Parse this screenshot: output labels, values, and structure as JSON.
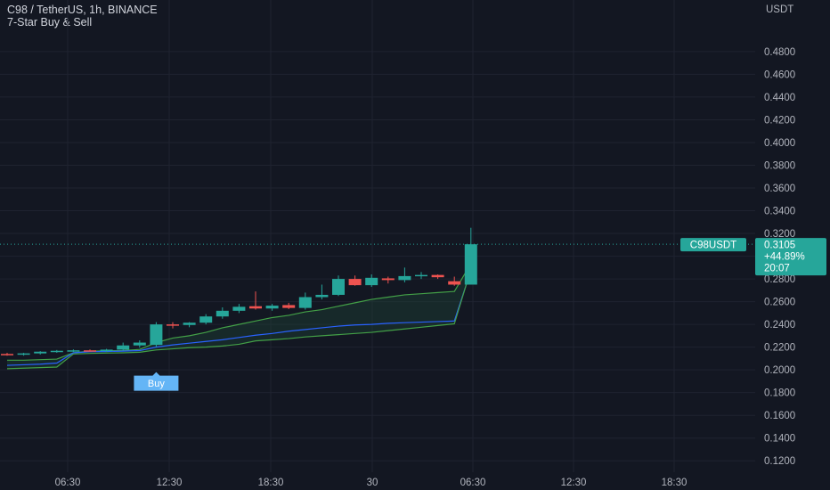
{
  "legend": {
    "symbol_line": "C98 / TetherUS, 1h, BINANCE",
    "indicator": "7-Star Buy & Sell"
  },
  "colors": {
    "background": "#131722",
    "grid": "#1f2330",
    "up": "#26a69a",
    "down": "#ef5350",
    "blue_line": "#2962ff",
    "green_line": "#43a047",
    "fill": "#1f4a3a",
    "buy_label": "#64b5f6"
  },
  "chart_data": {
    "type": "candlestick",
    "y_unit": "USDT",
    "ylim": [
      0.11,
      0.505
    ],
    "y_ticks": [
      "0.4800",
      "0.4600",
      "0.4400",
      "0.4200",
      "0.4000",
      "0.3800",
      "0.3600",
      "0.3400",
      "0.3200",
      "0.3000",
      "0.2800",
      "0.2600",
      "0.2400",
      "0.2200",
      "0.2000",
      "0.1800",
      "0.1600",
      "0.1400",
      "0.1200"
    ],
    "x_ticks": [
      "06:30",
      "12:30",
      "18:30",
      "30",
      "06:30",
      "12:30",
      "18:30"
    ],
    "grid": true,
    "last_price": {
      "symbol": "C98USDT",
      "price": "0.3105",
      "change": "+44.89%",
      "countdown": "20:07",
      "value": 0.3105
    },
    "buy_signal": {
      "label": "Buy",
      "candle_index": 9
    },
    "candles": [
      {
        "o": 0.214,
        "h": 0.215,
        "l": 0.2125,
        "c": 0.2135
      },
      {
        "o": 0.2135,
        "h": 0.215,
        "l": 0.2125,
        "c": 0.2145
      },
      {
        "o": 0.2145,
        "h": 0.2165,
        "l": 0.2135,
        "c": 0.216
      },
      {
        "o": 0.216,
        "h": 0.2175,
        "l": 0.215,
        "c": 0.2168
      },
      {
        "o": 0.2168,
        "h": 0.218,
        "l": 0.2158,
        "c": 0.2172
      },
      {
        "o": 0.2172,
        "h": 0.218,
        "l": 0.216,
        "c": 0.2165
      },
      {
        "o": 0.2165,
        "h": 0.2185,
        "l": 0.2158,
        "c": 0.2178
      },
      {
        "o": 0.2178,
        "h": 0.224,
        "l": 0.217,
        "c": 0.2215
      },
      {
        "o": 0.2215,
        "h": 0.226,
        "l": 0.2195,
        "c": 0.224
      },
      {
        "o": 0.222,
        "h": 0.242,
        "l": 0.22,
        "c": 0.24
      },
      {
        "o": 0.24,
        "h": 0.242,
        "l": 0.2365,
        "c": 0.2395
      },
      {
        "o": 0.2395,
        "h": 0.242,
        "l": 0.2375,
        "c": 0.2415
      },
      {
        "o": 0.2415,
        "h": 0.249,
        "l": 0.24,
        "c": 0.247
      },
      {
        "o": 0.247,
        "h": 0.255,
        "l": 0.245,
        "c": 0.252
      },
      {
        "o": 0.252,
        "h": 0.258,
        "l": 0.25,
        "c": 0.2555
      },
      {
        "o": 0.256,
        "h": 0.269,
        "l": 0.253,
        "c": 0.254
      },
      {
        "o": 0.254,
        "h": 0.258,
        "l": 0.252,
        "c": 0.2565
      },
      {
        "o": 0.257,
        "h": 0.259,
        "l": 0.2535,
        "c": 0.2545
      },
      {
        "o": 0.2545,
        "h": 0.268,
        "l": 0.253,
        "c": 0.264
      },
      {
        "o": 0.264,
        "h": 0.275,
        "l": 0.262,
        "c": 0.266
      },
      {
        "o": 0.266,
        "h": 0.283,
        "l": 0.265,
        "c": 0.28
      },
      {
        "o": 0.28,
        "h": 0.283,
        "l": 0.274,
        "c": 0.2745
      },
      {
        "o": 0.2745,
        "h": 0.284,
        "l": 0.273,
        "c": 0.281
      },
      {
        "o": 0.2805,
        "h": 0.282,
        "l": 0.276,
        "c": 0.279
      },
      {
        "o": 0.279,
        "h": 0.29,
        "l": 0.277,
        "c": 0.2825
      },
      {
        "o": 0.2825,
        "h": 0.286,
        "l": 0.28,
        "c": 0.2835
      },
      {
        "o": 0.2835,
        "h": 0.284,
        "l": 0.28,
        "c": 0.2815
      },
      {
        "o": 0.278,
        "h": 0.282,
        "l": 0.274,
        "c": 0.275
      },
      {
        "o": 0.275,
        "h": 0.325,
        "l": 0.275,
        "c": 0.3105
      }
    ],
    "series": [
      {
        "values": [
          0.2085,
          0.2085,
          0.209,
          0.2095,
          0.215,
          0.2165,
          0.2168,
          0.217,
          0.218,
          0.224,
          0.228,
          0.23,
          0.233,
          0.237,
          0.24,
          0.243,
          0.246,
          0.248,
          0.251,
          0.253,
          0.256,
          0.259,
          0.262,
          0.264,
          0.266,
          0.267,
          0.268,
          0.269,
          0.2935
        ]
      },
      {
        "values": [
          0.204,
          0.2045,
          0.205,
          0.206,
          0.215,
          0.216,
          0.2162,
          0.2165,
          0.217,
          0.22,
          0.222,
          0.2235,
          0.225,
          0.2265,
          0.2285,
          0.2305,
          0.232,
          0.234,
          0.2355,
          0.237,
          0.2385,
          0.2395,
          0.24,
          0.241,
          0.2415,
          0.242,
          0.2425,
          0.243,
          0.2875
        ]
      },
      {
        "values": [
          0.201,
          0.2015,
          0.202,
          0.2025,
          0.214,
          0.2145,
          0.2148,
          0.215,
          0.2155,
          0.2175,
          0.2185,
          0.2195,
          0.22,
          0.221,
          0.2225,
          0.2255,
          0.2265,
          0.2275,
          0.229,
          0.23,
          0.231,
          0.232,
          0.233,
          0.2345,
          0.236,
          0.2375,
          0.239,
          0.2405,
          0.2885
        ]
      }
    ]
  }
}
